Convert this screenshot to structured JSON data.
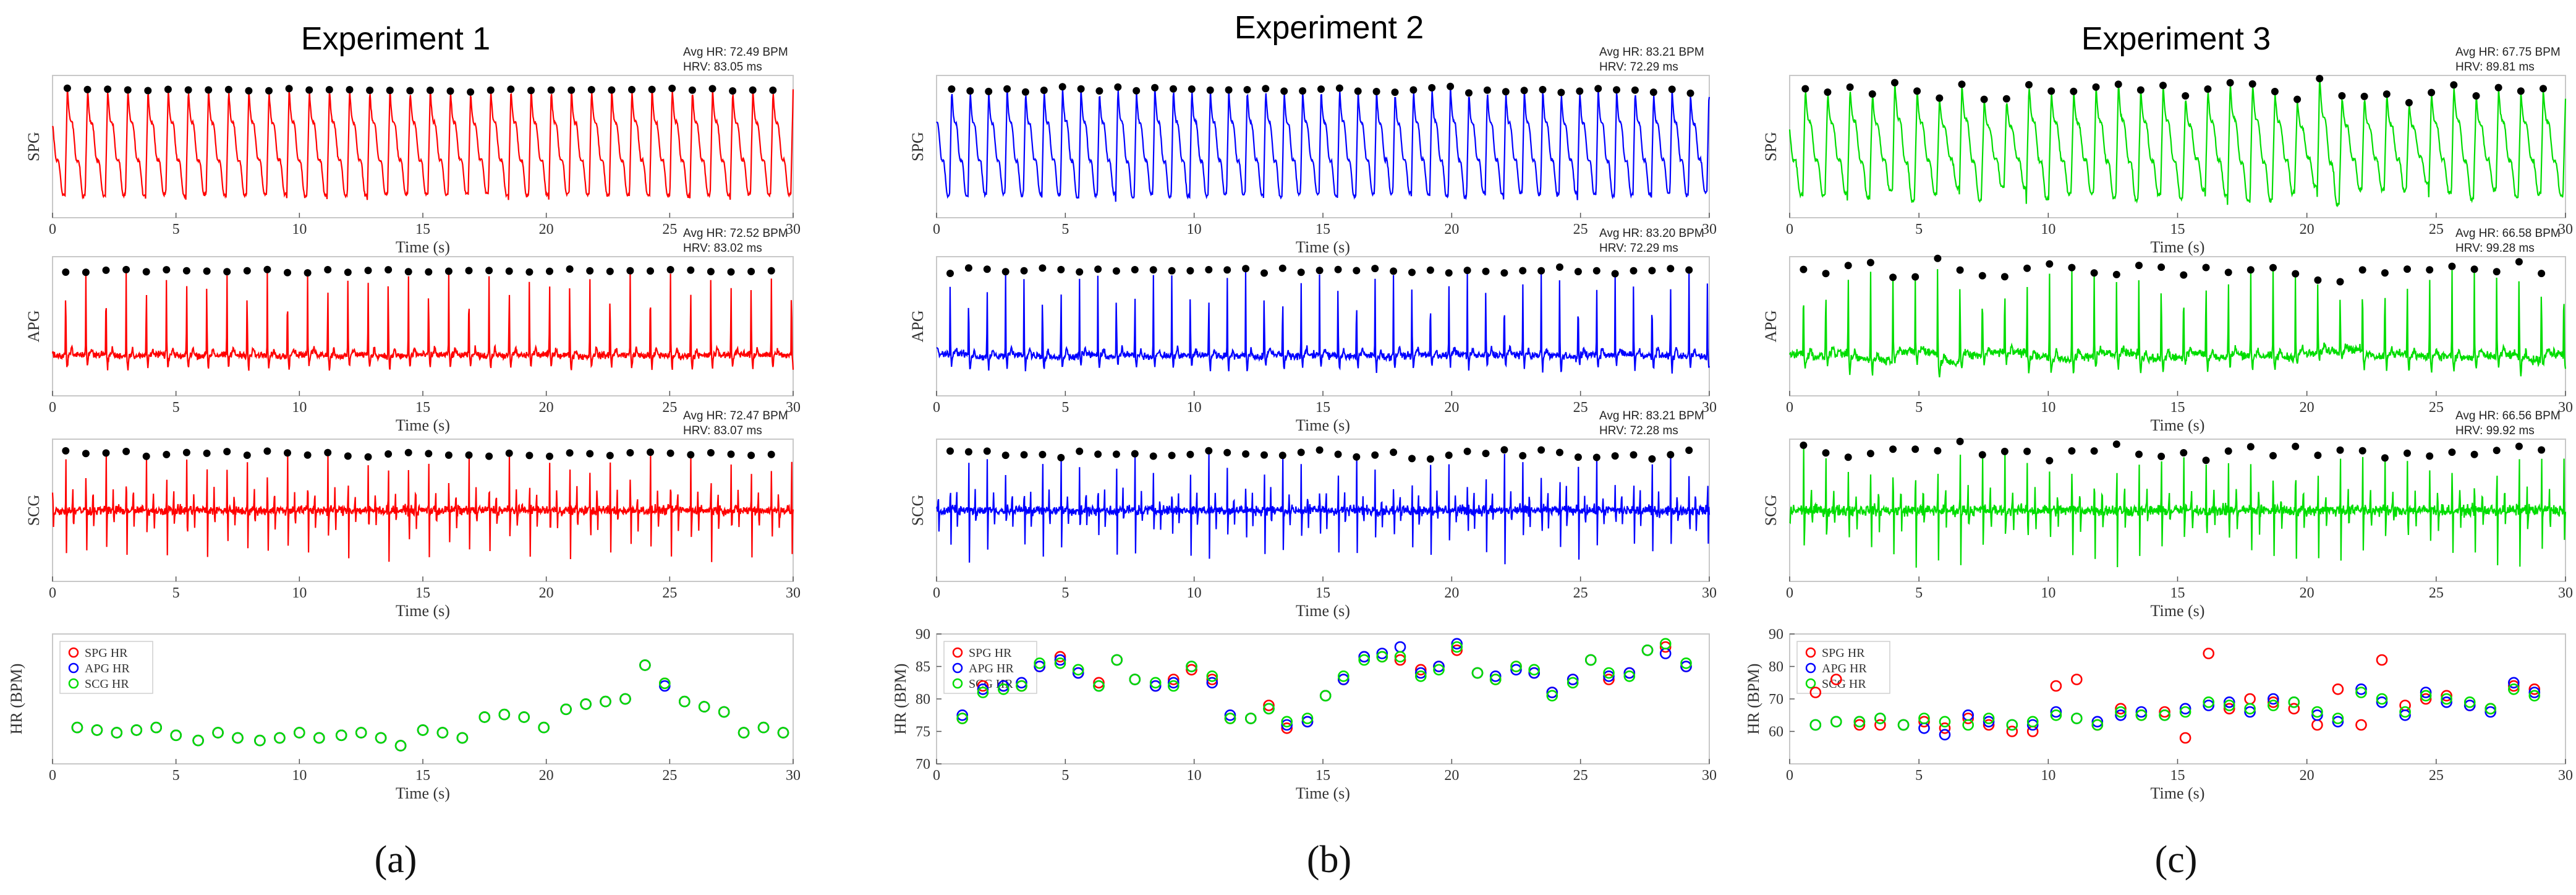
{
  "chart_data": [
    {
      "title": "Experiment 1",
      "caption": "(a)",
      "color": "#ff0000",
      "x_ticks": [
        "0",
        "5",
        "10",
        "15",
        "20",
        "25",
        "30"
      ],
      "xlabel": "Time (s)",
      "xlim": [
        0,
        30
      ],
      "signals": [
        {
          "type": "line",
          "ylabel": "SPG",
          "kind": "spg",
          "amp_var": 0.06,
          "avg_hr": "Avg HR: 72.49 BPM",
          "hrv": "HRV: 83.05 ms",
          "beats": 36
        },
        {
          "type": "line",
          "ylabel": "APG",
          "kind": "apg",
          "amp_var": 0.06,
          "avg_hr": "Avg HR: 72.52 BPM",
          "hrv": "HRV: 83.02 ms",
          "beats": 36
        },
        {
          "type": "line",
          "ylabel": "SCG",
          "kind": "scg",
          "amp_var": 0.1,
          "avg_hr": "Avg HR: 72.47 BPM",
          "hrv": "HRV: 83.07 ms",
          "beats": 36
        }
      ],
      "hr": {
        "type": "scatter",
        "ylabel": "HR (BPM)",
        "ylim": [
          65,
          90
        ],
        "y_ticks": [],
        "legend": [
          "SPG HR",
          "APG HR",
          "SCG HR"
        ],
        "series_colors": [
          "#ff0000",
          "#0000ff",
          "#00dd00"
        ],
        "t": [
          1.0,
          1.8,
          2.6,
          3.4,
          4.2,
          5.0,
          5.9,
          6.7,
          7.5,
          8.4,
          9.2,
          10.0,
          10.8,
          11.7,
          12.5,
          13.3,
          14.1,
          15.0,
          15.8,
          16.6,
          17.5,
          18.3,
          19.1,
          19.9,
          20.8,
          21.6,
          22.4,
          23.2,
          24.0,
          24.8,
          25.6,
          26.4,
          27.2,
          28.0,
          28.8,
          29.6
        ],
        "spg": [
          72,
          71.5,
          71,
          71.5,
          72,
          70.5,
          69.5,
          71,
          70,
          69.5,
          70,
          71,
          70,
          70.5,
          71,
          70,
          68.5,
          71.5,
          71,
          70,
          74,
          74.5,
          74,
          72,
          75.5,
          76.5,
          77,
          77.5,
          84,
          80.5,
          77,
          76,
          75,
          71,
          72,
          71
        ],
        "apg": [
          72,
          71.5,
          71,
          71.5,
          72,
          70.5,
          69.5,
          71,
          70,
          69.5,
          70,
          71,
          70,
          70.5,
          71,
          70,
          68.5,
          71.5,
          71,
          70,
          74,
          74.5,
          74,
          72,
          75.5,
          76.5,
          77,
          77.5,
          84,
          80,
          77,
          76,
          75,
          71,
          72,
          71
        ],
        "scg": [
          72,
          71.5,
          71,
          71.5,
          72,
          70.5,
          69.5,
          71,
          70,
          69.5,
          70,
          71,
          70,
          70.5,
          71,
          70,
          68.5,
          71.5,
          71,
          70,
          74,
          74.5,
          74,
          72,
          75.5,
          76.5,
          77,
          77.5,
          84,
          80.5,
          77,
          76,
          75,
          71,
          72,
          71
        ]
      }
    },
    {
      "title": "Experiment 2",
      "caption": "(b)",
      "color": "#0000ff",
      "x_ticks": [
        "0",
        "5",
        "10",
        "15",
        "20",
        "25",
        "30"
      ],
      "xlabel": "Time (s)",
      "xlim": [
        0,
        30
      ],
      "signals": [
        {
          "type": "line",
          "ylabel": "SPG",
          "kind": "spg",
          "amp_var": 0.1,
          "avg_hr": "Avg HR: 83.21 BPM",
          "hrv": "HRV: 72.29 ms",
          "beats": 41
        },
        {
          "type": "line",
          "ylabel": "APG",
          "kind": "apg",
          "amp_var": 0.1,
          "avg_hr": "Avg HR: 83.20 BPM",
          "hrv": "HRV: 72.29 ms",
          "beats": 41
        },
        {
          "type": "line",
          "ylabel": "SCG",
          "kind": "scg",
          "amp_var": 0.15,
          "avg_hr": "Avg HR: 83.21 BPM",
          "hrv": "HRV: 72.28 ms",
          "beats": 41
        }
      ],
      "hr": {
        "type": "scatter",
        "ylabel": "HR (BPM)",
        "ylim": [
          70,
          90
        ],
        "y_ticks": [
          "70",
          "75",
          "80",
          "85",
          "90"
        ],
        "legend": [
          "SPG HR",
          "APG HR",
          "SCG HR"
        ],
        "series_colors": [
          "#ff0000",
          "#0000ff",
          "#00dd00"
        ],
        "t": [
          1.0,
          1.8,
          2.6,
          3.3,
          4.0,
          4.8,
          5.5,
          6.3,
          7.0,
          7.7,
          8.5,
          9.2,
          9.9,
          10.7,
          11.4,
          12.2,
          12.9,
          13.6,
          14.4,
          15.1,
          15.8,
          16.6,
          17.3,
          18.0,
          18.8,
          19.5,
          20.2,
          21.0,
          21.7,
          22.5,
          23.2,
          23.9,
          24.7,
          25.4,
          26.1,
          26.9,
          27.6,
          28.3,
          29.1
        ],
        "spg": [
          77,
          82,
          82,
          82,
          85,
          86.5,
          84,
          82.5,
          86,
          83,
          82,
          83,
          84.5,
          83,
          77,
          77,
          79,
          75.5,
          76.5,
          80.5,
          83,
          86.5,
          86.5,
          86,
          84.5,
          85,
          87.5,
          84,
          83,
          85,
          84,
          81,
          83,
          86,
          83,
          84,
          87.5,
          88,
          85
        ],
        "apg": [
          77.5,
          81.5,
          82,
          82.5,
          85,
          86,
          84,
          82,
          86,
          83,
          82,
          82.5,
          85,
          82.5,
          77.5,
          77,
          78.5,
          76,
          76.5,
          80.5,
          83,
          86.5,
          87,
          88,
          84,
          85,
          88.5,
          84,
          83.5,
          84.5,
          84,
          81,
          83,
          86,
          83.5,
          84,
          87.5,
          87,
          85
        ],
        "scg": [
          77,
          81,
          81.5,
          82,
          85.5,
          85.5,
          84.5,
          82,
          86,
          83,
          82.5,
          82,
          85,
          83.5,
          77,
          77,
          78.5,
          76.5,
          77,
          80.5,
          83.5,
          86,
          86.5,
          86.5,
          83.5,
          84.5,
          88,
          84,
          83,
          85,
          84.5,
          80.5,
          82.5,
          86,
          84,
          83.5,
          87.5,
          88.5,
          85.5
        ]
      }
    },
    {
      "title": "Experiment 3",
      "caption": "(c)",
      "color": "#00dd00",
      "x_ticks": [
        "0",
        "5",
        "10",
        "15",
        "20",
        "25",
        "30"
      ],
      "xlabel": "Time (s)",
      "xlim": [
        0,
        30
      ],
      "signals": [
        {
          "type": "line",
          "ylabel": "SPG",
          "kind": "spg",
          "amp_var": 0.35,
          "avg_hr": "Avg HR: 67.75 BPM",
          "hrv": "HRV: 89.81 ms",
          "beats": 34
        },
        {
          "type": "line",
          "ylabel": "APG",
          "kind": "apg",
          "amp_var": 0.35,
          "avg_hr": "Avg HR: 66.58 BPM",
          "hrv": "HRV: 99.28 ms",
          "beats": 34
        },
        {
          "type": "line",
          "ylabel": "SCG",
          "kind": "scg",
          "amp_var": 0.3,
          "avg_hr": "Avg HR: 66.56 BPM",
          "hrv": "HRV: 99.92 ms",
          "beats": 34
        }
      ],
      "hr": {
        "type": "scatter",
        "ylabel": "HR (BPM)",
        "ylim": [
          50,
          90
        ],
        "y_ticks": [
          "60",
          "70",
          "80",
          "90"
        ],
        "legend": [
          "SPG HR",
          "APG HR",
          "SCG HR"
        ],
        "series_colors": [
          "#ff0000",
          "#0000ff",
          "#00dd00"
        ],
        "t": [
          1.0,
          1.8,
          2.7,
          3.5,
          4.4,
          5.2,
          6.0,
          6.9,
          7.7,
          8.6,
          9.4,
          10.3,
          11.1,
          11.9,
          12.8,
          13.6,
          14.5,
          15.3,
          16.2,
          17.0,
          17.8,
          18.7,
          19.5,
          20.4,
          21.2,
          22.1,
          22.9,
          23.8,
          24.6,
          25.4,
          26.3,
          27.1,
          28.0,
          28.8
        ],
        "spg": [
          72,
          76,
          62,
          62,
          62,
          63,
          61,
          64,
          62,
          60,
          60,
          74,
          76,
          62,
          67,
          65,
          66,
          58,
          84,
          67,
          70,
          69,
          67,
          62,
          73,
          62,
          82,
          68,
          70,
          71,
          68,
          67,
          74,
          73
        ],
        "apg": [
          62,
          63,
          63,
          64,
          62,
          61,
          59,
          65,
          63,
          62,
          62,
          66,
          64,
          63,
          65,
          66,
          65,
          67,
          68,
          69,
          66,
          70,
          69,
          65,
          63,
          73,
          69,
          65,
          72,
          69,
          68,
          66,
          75,
          72
        ],
        "scg": [
          62,
          63,
          63,
          64,
          62,
          64,
          63,
          62,
          64,
          62,
          63,
          65,
          64,
          62,
          66,
          65,
          65,
          66,
          69,
          68,
          67,
          68,
          69,
          66,
          64,
          72,
          70,
          66,
          71,
          70,
          69,
          67,
          73,
          71
        ]
      }
    }
  ]
}
